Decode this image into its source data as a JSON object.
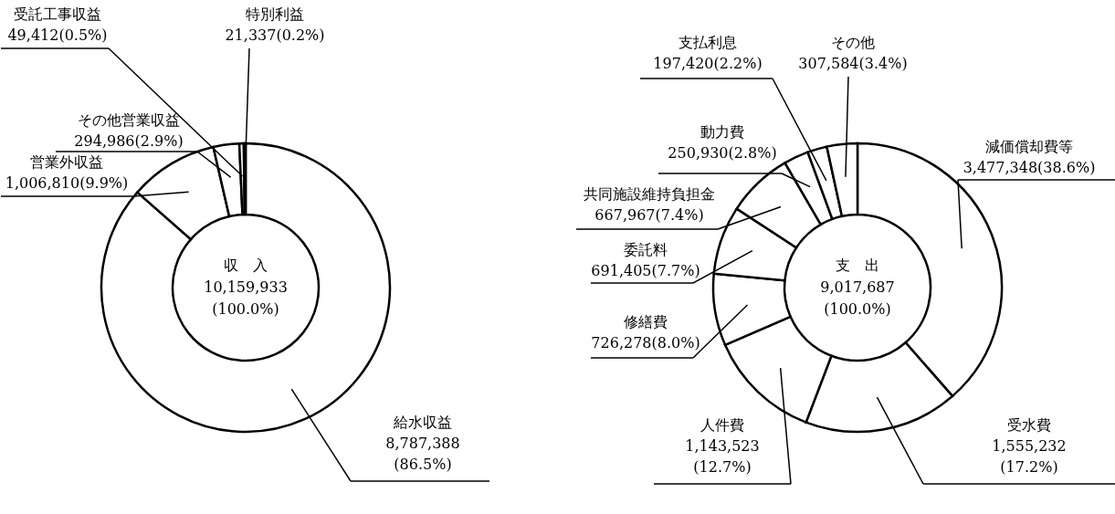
{
  "chart_data": [
    {
      "type": "donut",
      "categories": [
        "給水収益",
        "営業外収益",
        "その他営業収益",
        "受託工事収益",
        "特別利益"
      ],
      "values": [
        8787388,
        1006810,
        294986,
        49412,
        21337
      ],
      "colors": [
        "#ffffff",
        "#ffffff",
        "#ffffff",
        "#ffffff",
        "#ffffff"
      ],
      "value_labels": [
        "8,787,388(86.5%)",
        "1,006,810(9.9%)",
        "294,986(2.9%)",
        "49,412(0.5%)",
        "21,337(0.2%)"
      ],
      "annotations": [
        "収　入",
        "10,159,933",
        "(100.0%)"
      ]
    },
    {
      "type": "donut",
      "categories": [
        "減価償却費等",
        "受水費",
        "人件費",
        "修繕費",
        "委託料",
        "共同施設維持負担金",
        "動力費",
        "支払利息",
        "その他"
      ],
      "values": [
        3477348,
        1555232,
        1143523,
        726278,
        691405,
        667967,
        250930,
        197420,
        307584
      ],
      "colors": [
        "#ffffff",
        "#ffffff",
        "#ffffff",
        "#ffffff",
        "#ffffff",
        "#ffffff",
        "#ffffff",
        "#ffffff",
        "#ffffff"
      ],
      "value_labels": [
        "3,477,348(38.6%)",
        "1,555,232(17.2%)",
        "1,143,523(12.7%)",
        "726,278(8.0%)",
        "691,405(7.7%)",
        "667,967(7.4%)",
        "250,930(2.8%)",
        "197,420(2.2%)",
        "307,584(3.4%)"
      ],
      "annotations": [
        "支　出",
        "9,017,687",
        "(100.0%)"
      ]
    }
  ]
}
